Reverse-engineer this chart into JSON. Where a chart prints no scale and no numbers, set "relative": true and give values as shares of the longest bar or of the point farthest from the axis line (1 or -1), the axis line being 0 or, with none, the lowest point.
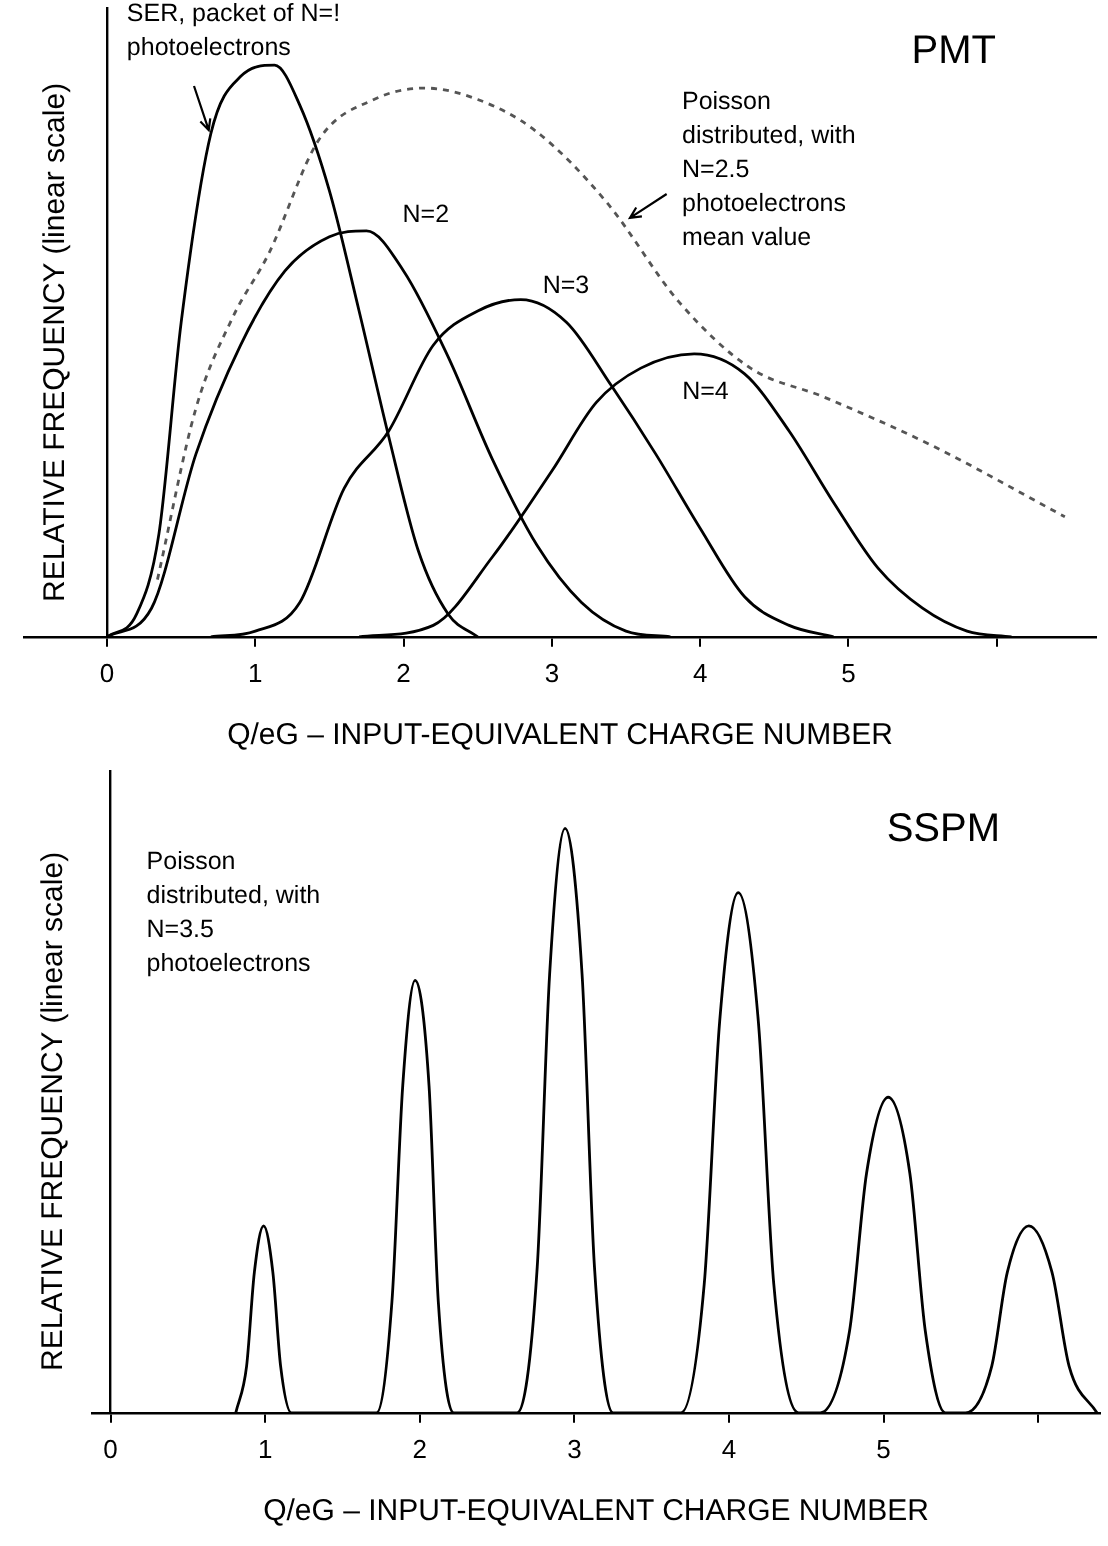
{
  "chart_data": [
    {
      "type": "line",
      "title": "PMT",
      "xlabel": "Q/eG – INPUT-EQUIVALENT CHARGE NUMBER",
      "ylabel": "RELATIVE FREQUENCY (linear scale)",
      "relative": true,
      "xlim": [
        -0.56,
        6.67
      ],
      "xticks": [
        0,
        1,
        2,
        3,
        4,
        5,
        {
          "value": 6,
          "label": null
        }
      ],
      "tick_labels": "x",
      "series": [
        {
          "color": "#000000",
          "x": [
            0,
            0.2,
            0.35,
            0.5,
            0.7,
            0.9,
            1.13,
            1.3,
            1.5,
            1.7,
            1.9,
            2.1,
            2.3,
            2.5
          ],
          "values": [
            0,
            0.04,
            0.18,
            0.55,
            0.88,
            0.98,
            1,
            0.93,
            0.78,
            0.57,
            0.35,
            0.15,
            0.04,
            0
          ]
        },
        {
          "color": "#000000",
          "x": [
            0,
            0.3,
            0.6,
            0.9,
            1.2,
            1.5,
            1.75,
            2,
            2.3,
            2.6,
            2.9,
            3.2,
            3.5,
            3.8
          ],
          "values": [
            0,
            0.05,
            0.32,
            0.51,
            0.64,
            0.7,
            0.71,
            0.64,
            0.49,
            0.31,
            0.16,
            0.06,
            0.01,
            0
          ]
        },
        {
          "color": "#000000",
          "x": [
            0.7,
            1,
            1.3,
            1.6,
            1.9,
            2.2,
            2.5,
            2.79,
            3.1,
            3.4,
            3.7,
            4,
            4.3,
            4.6,
            4.9
          ],
          "values": [
            0,
            0.01,
            0.06,
            0.26,
            0.36,
            0.51,
            0.57,
            0.59,
            0.55,
            0.44,
            0.32,
            0.19,
            0.07,
            0.02,
            0
          ]
        },
        {
          "color": "#000000",
          "x": [
            1.7,
            2.2,
            2.6,
            3,
            3.3,
            3.6,
            3.96,
            4.3,
            4.6,
            4.9,
            5.2,
            5.5,
            5.8,
            6.1
          ],
          "values": [
            0,
            0.02,
            0.14,
            0.29,
            0.41,
            0.47,
            0.495,
            0.46,
            0.36,
            0.235,
            0.12,
            0.05,
            0.01,
            0
          ]
        },
        {
          "color": "#555555",
          "line_style": "dashed",
          "x": [
            0.34,
            0.6,
            0.85,
            1.09,
            1.43,
            1.8,
            2.14,
            2.5,
            2.89,
            3.37,
            3.86,
            4.34,
            4.83,
            5.56,
            6.46
          ],
          "values": [
            0.1,
            0.4,
            0.56,
            0.67,
            0.87,
            0.94,
            0.96,
            0.94,
            0.885,
            0.76,
            0.585,
            0.47,
            0.42,
            0.335,
            0.21
          ]
        }
      ],
      "annotations": [
        {
          "text": "SER, packet of N=! photoelectrons",
          "x": 0.7,
          "y": 0.88
        },
        {
          "text": "Poisson distributed, with N=2.5 photoelectrons mean value",
          "x": 3.5,
          "y": 0.73
        },
        {
          "text": "N=2",
          "x": 1.75,
          "y": 0.71
        },
        {
          "text": "N=3",
          "x": 2.79,
          "y": 0.59
        },
        {
          "text": "N=4",
          "x": 3.96,
          "y": 0.495
        }
      ]
    },
    {
      "type": "line",
      "title": "SSPM",
      "xlabel": "Q/eG – INPUT-EQUIVALENT CHARGE NUMBER",
      "ylabel": "RELATIVE FREQUENCY (linear scale)",
      "relative": true,
      "xlim": [
        -0.12,
        6.4
      ],
      "xticks": [
        0,
        1,
        2,
        3,
        4,
        5,
        {
          "value": 6,
          "label": null
        }
      ],
      "tick_labels": "x",
      "series": [
        {
          "color": "#000000",
          "x": [
            0.81,
            0.88,
            0.93,
            0.99,
            1.05,
            1.1,
            1.17,
            1.72,
            1.82,
            1.89,
            1.97,
            2.06,
            2.12,
            2.22,
            2.63,
            2.76,
            2.84,
            2.94,
            3.05,
            3.13,
            3.25,
            3.69,
            3.84,
            3.94,
            4.06,
            4.19,
            4.29,
            4.45,
            4.59,
            4.78,
            4.89,
            5.03,
            5.17,
            5.27,
            5.4,
            5.53,
            5.7,
            5.8,
            5.94,
            6.09,
            6.2,
            6.38
          ],
          "values": [
            0,
            0.08,
            0.24,
            0.32,
            0.24,
            0.08,
            0,
            0,
            0.19,
            0.56,
            0.74,
            0.56,
            0.19,
            0,
            0,
            0.25,
            0.75,
            1,
            0.75,
            0.25,
            0,
            0,
            0.22,
            0.67,
            0.89,
            0.67,
            0.22,
            0,
            0,
            0.14,
            0.41,
            0.54,
            0.41,
            0.14,
            0,
            0,
            0.08,
            0.24,
            0.32,
            0.24,
            0.08,
            0
          ]
        }
      ],
      "annotations": [
        "Poisson distributed, with N=3.5 photoelectrons"
      ]
    }
  ]
}
